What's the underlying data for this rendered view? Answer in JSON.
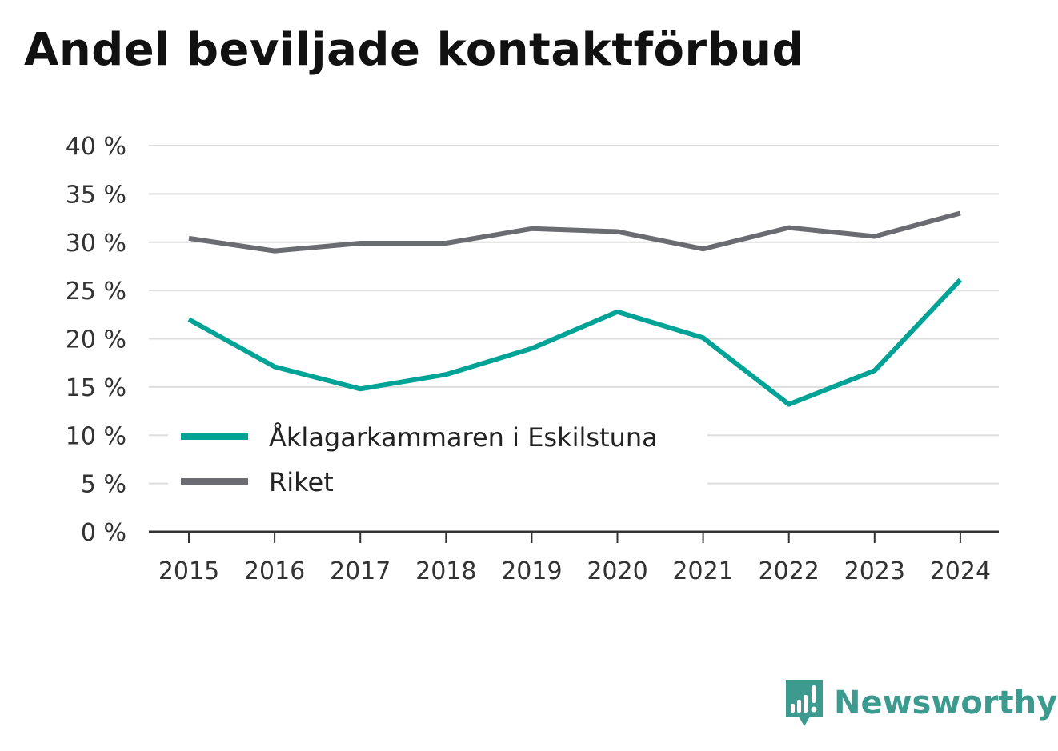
{
  "chart_data": {
    "type": "line",
    "title": "Andel beviljade kontaktförbud",
    "x": [
      "2015",
      "2016",
      "2017",
      "2018",
      "2019",
      "2020",
      "2021",
      "2022",
      "2023",
      "2024"
    ],
    "series": [
      {
        "name": "Åklagarkammaren i Eskilstuna",
        "color": "#00a396",
        "values": [
          22.0,
          17.1,
          14.8,
          16.3,
          19.0,
          22.8,
          20.1,
          13.2,
          16.7,
          26.1
        ]
      },
      {
        "name": "Riket",
        "color": "#6b6b72",
        "values": [
          30.4,
          29.1,
          29.9,
          29.9,
          31.4,
          31.1,
          29.3,
          31.5,
          30.6,
          33.0
        ]
      }
    ],
    "yticks": [
      "0 %",
      "5 %",
      "10 %",
      "15 %",
      "20 %",
      "25 %",
      "30 %",
      "35 %",
      "40 %"
    ],
    "ylim": [
      0,
      40
    ],
    "grid": true,
    "legend": "lower-left"
  },
  "brand": {
    "name": "Newsworthy",
    "color": "#3d9a8f",
    "icon": "newsworthy-chart-icon"
  }
}
